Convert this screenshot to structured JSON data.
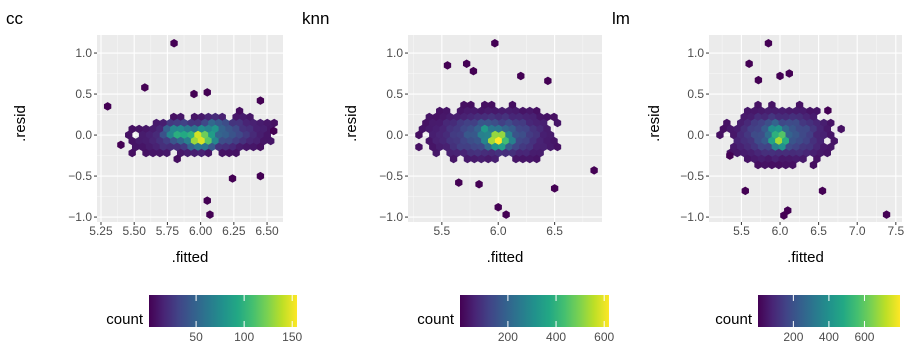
{
  "chart_data": [
    {
      "type": "hexbin",
      "title": "cc",
      "xlabel": ".fitted",
      "ylabel": ".resid",
      "xlim": [
        5.22,
        6.62
      ],
      "ylim": [
        -1.06,
        1.22
      ],
      "xticks": [
        5.25,
        5.5,
        5.75,
        6.0,
        6.25,
        6.5
      ],
      "xtick_labels": [
        "5.25",
        "5.50",
        "5.75",
        "6.00",
        "6.25",
        "6.50"
      ],
      "yticks": [
        -1.0,
        -0.5,
        0.0,
        0.5,
        1.0
      ],
      "ytick_labels": [
        "−1.0",
        "−0.5",
        "0.0",
        "0.5",
        "1.0"
      ],
      "grid": true,
      "legend": {
        "title": "count",
        "range": [
          1,
          155
        ],
        "ticks": [
          50,
          100,
          150
        ],
        "tick_labels": [
          "50",
          "100",
          "150"
        ]
      },
      "cloud": {
        "cx": 6.02,
        "cy": 0.0,
        "sx": 0.58,
        "sy": 0.27,
        "tilt": 0.1
      },
      "peaks": [
        {
          "x": 6.0,
          "y": -0.03,
          "count": 155
        },
        {
          "x": 5.85,
          "y": 0.02,
          "count": 100
        },
        {
          "x": 6.1,
          "y": 0.08,
          "count": 70
        }
      ],
      "outliers": [
        {
          "x": 5.8,
          "y": 1.12
        },
        {
          "x": 5.58,
          "y": 0.58
        },
        {
          "x": 6.05,
          "y": 0.52
        },
        {
          "x": 5.95,
          "y": 0.5
        },
        {
          "x": 6.45,
          "y": 0.42
        },
        {
          "x": 5.3,
          "y": 0.35
        },
        {
          "x": 6.05,
          "y": -0.8
        },
        {
          "x": 6.07,
          "y": -0.97
        },
        {
          "x": 6.24,
          "y": -0.53
        },
        {
          "x": 6.45,
          "y": -0.5
        },
        {
          "x": 5.4,
          "y": -0.12
        },
        {
          "x": 6.55,
          "y": 0.05
        }
      ]
    },
    {
      "type": "hexbin",
      "title": "knn",
      "xlabel": ".fitted",
      "ylabel": ".resid",
      "xlim": [
        5.2,
        6.92
      ],
      "ylim": [
        -1.06,
        1.22
      ],
      "xticks": [
        5.5,
        6.0,
        6.5
      ],
      "xtick_labels": [
        "5.5",
        "6.0",
        "6.5"
      ],
      "yticks": [
        -1.0,
        -0.5,
        0.0,
        0.5,
        1.0
      ],
      "ytick_labels": [
        "−1.0",
        "−0.5",
        "0.0",
        "0.5",
        "1.0"
      ],
      "grid": true,
      "legend": {
        "title": "count",
        "range": [
          1,
          620
        ],
        "ticks": [
          200,
          400,
          600
        ],
        "tick_labels": [
          "200",
          "400",
          "600"
        ]
      },
      "cloud": {
        "cx": 5.94,
        "cy": 0.0,
        "sx": 0.66,
        "sy": 0.37,
        "tilt": 0.0
      },
      "peaks": [
        {
          "x": 6.0,
          "y": -0.05,
          "count": 620
        },
        {
          "x": 5.9,
          "y": 0.05,
          "count": 330
        }
      ],
      "outliers": [
        {
          "x": 5.97,
          "y": 1.12
        },
        {
          "x": 5.72,
          "y": 0.87
        },
        {
          "x": 5.78,
          "y": 0.78
        },
        {
          "x": 6.2,
          "y": 0.72
        },
        {
          "x": 6.44,
          "y": 0.66
        },
        {
          "x": 5.55,
          "y": 0.85
        },
        {
          "x": 6.85,
          "y": -0.43
        },
        {
          "x": 5.83,
          "y": -0.6
        },
        {
          "x": 6.07,
          "y": -0.97
        },
        {
          "x": 6.0,
          "y": -0.88
        },
        {
          "x": 6.5,
          "y": -0.65
        },
        {
          "x": 5.65,
          "y": -0.58
        }
      ]
    },
    {
      "type": "hexbin",
      "title": "lm",
      "xlabel": ".fitted",
      "ylabel": ".resid",
      "xlim": [
        5.08,
        7.58
      ],
      "ylim": [
        -1.06,
        1.22
      ],
      "xticks": [
        5.5,
        6.0,
        6.5,
        7.0,
        7.5
      ],
      "xtick_labels": [
        "5.5",
        "6.0",
        "6.5",
        "7.0",
        "7.5"
      ],
      "yticks": [
        -1.0,
        -0.5,
        0.0,
        0.5,
        1.0
      ],
      "ytick_labels": [
        "−1.0",
        "−0.5",
        "0.0",
        "0.5",
        "1.0"
      ],
      "grid": true,
      "legend": {
        "title": "count",
        "range": [
          1,
          800
        ],
        "ticks": [
          200,
          400,
          600
        ],
        "tick_labels": [
          "200",
          "400",
          "600"
        ]
      },
      "cloud": {
        "cx": 6.0,
        "cy": 0.0,
        "sx": 0.76,
        "sy": 0.38,
        "tilt": 0.0
      },
      "peaks": [
        {
          "x": 6.0,
          "y": -0.05,
          "count": 800
        },
        {
          "x": 5.95,
          "y": 0.06,
          "count": 420
        }
      ],
      "outliers": [
        {
          "x": 5.85,
          "y": 1.12
        },
        {
          "x": 5.6,
          "y": 0.87
        },
        {
          "x": 6.0,
          "y": 0.72
        },
        {
          "x": 5.72,
          "y": 0.67
        },
        {
          "x": 6.12,
          "y": 0.75
        },
        {
          "x": 7.38,
          "y": -0.97
        },
        {
          "x": 6.1,
          "y": -0.92
        },
        {
          "x": 6.05,
          "y": -0.98
        },
        {
          "x": 5.55,
          "y": -0.68
        },
        {
          "x": 6.55,
          "y": -0.68
        },
        {
          "x": 5.35,
          "y": -0.25
        },
        {
          "x": 6.62,
          "y": 0.3
        }
      ]
    }
  ]
}
